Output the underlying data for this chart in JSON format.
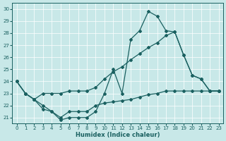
{
  "xlabel": "Humidex (Indice chaleur)",
  "bg_color": "#c8e8e8",
  "line_color": "#1a6060",
  "xlim": [
    -0.5,
    23.5
  ],
  "ylim": [
    20.5,
    30.5
  ],
  "yticks": [
    21,
    22,
    23,
    24,
    25,
    26,
    27,
    28,
    29,
    30
  ],
  "xticks": [
    0,
    1,
    2,
    3,
    4,
    5,
    6,
    7,
    8,
    9,
    10,
    11,
    12,
    13,
    14,
    15,
    16,
    17,
    18,
    19,
    20,
    21,
    22,
    23
  ],
  "line1_x": [
    0,
    1,
    2,
    3,
    4,
    5,
    6,
    7,
    8,
    9,
    10,
    11,
    12,
    13,
    14,
    15,
    16,
    17,
    18,
    19,
    20,
    21,
    22,
    23
  ],
  "line1_y": [
    24.0,
    23.0,
    22.5,
    21.7,
    21.5,
    20.8,
    21.0,
    21.0,
    21.0,
    21.5,
    23.0,
    25.0,
    23.0,
    27.5,
    28.2,
    29.8,
    29.4,
    28.2,
    28.1,
    26.2,
    24.5,
    24.2,
    23.2,
    23.2
  ],
  "line2_x": [
    0,
    1,
    2,
    3,
    4,
    5,
    6,
    7,
    8,
    9,
    10,
    11,
    12,
    13,
    14,
    15,
    16,
    17,
    18,
    19,
    20,
    21,
    22,
    23
  ],
  "line2_y": [
    24.0,
    23.0,
    22.5,
    23.0,
    23.0,
    23.0,
    23.2,
    23.2,
    23.2,
    23.5,
    24.2,
    24.8,
    25.2,
    25.8,
    26.3,
    26.8,
    27.2,
    27.8,
    28.1,
    26.2,
    24.5,
    24.2,
    23.2,
    23.2
  ],
  "line3_x": [
    0,
    1,
    2,
    3,
    4,
    5,
    6,
    7,
    8,
    9,
    10,
    11,
    12,
    13,
    14,
    15,
    16,
    17,
    18,
    19,
    20,
    21,
    22,
    23
  ],
  "line3_y": [
    24.0,
    23.0,
    22.5,
    22.0,
    21.5,
    21.0,
    21.5,
    21.5,
    21.5,
    22.0,
    22.2,
    22.3,
    22.4,
    22.5,
    22.7,
    22.9,
    23.0,
    23.2,
    23.2,
    23.2,
    23.2,
    23.2,
    23.2,
    23.2
  ]
}
